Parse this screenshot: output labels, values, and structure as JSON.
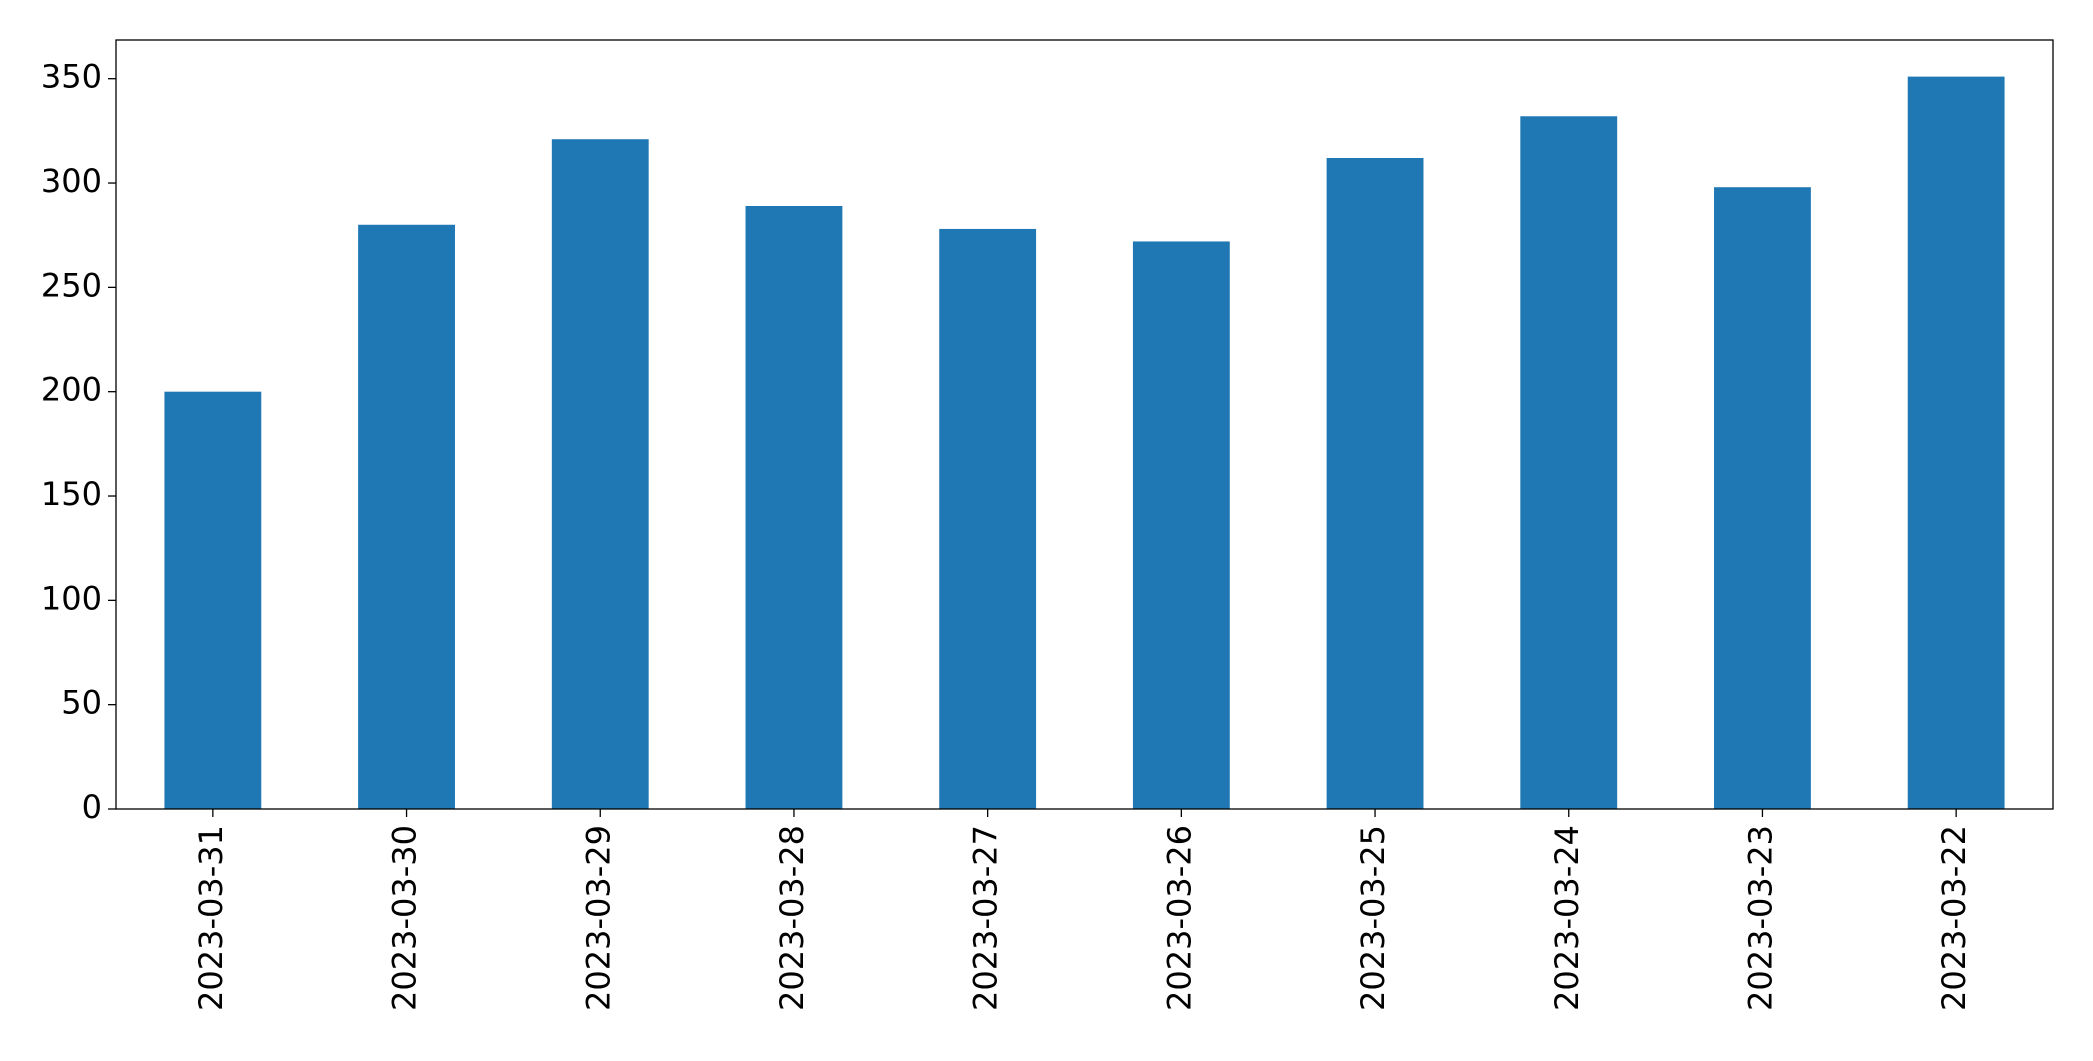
{
  "chart_data": {
    "type": "bar",
    "categories": [
      "2023-03-31",
      "2023-03-30",
      "2023-03-29",
      "2023-03-28",
      "2023-03-27",
      "2023-03-26",
      "2023-03-25",
      "2023-03-24",
      "2023-03-23",
      "2023-03-22"
    ],
    "values": [
      200,
      280,
      321,
      289,
      278,
      272,
      312,
      332,
      298,
      351
    ],
    "color": "#1f77b4",
    "ylim": [
      0,
      368.55
    ],
    "yticks": [
      0,
      50,
      100,
      150,
      200,
      250,
      300,
      350
    ],
    "grid": false
  }
}
